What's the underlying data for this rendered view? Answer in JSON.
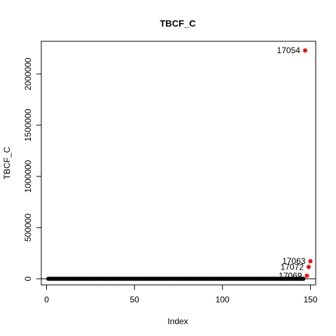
{
  "chart_data": {
    "type": "scatter",
    "title": "TBCF_C",
    "xlabel": "Index",
    "ylabel": "TBCF_C",
    "xlim": [
      -3,
      153
    ],
    "ylim": [
      -60000,
      2320000
    ],
    "x_ticks": [
      0,
      50,
      100,
      150
    ],
    "y_ticks": [
      0,
      500000,
      1000000,
      1500000,
      2000000
    ],
    "grid": false,
    "reference_line_y": 0,
    "base_series": {
      "color": "#000000",
      "x_start": 1,
      "x_end": 146,
      "y": 0
    },
    "outliers": [
      {
        "label": "17054",
        "x": 147,
        "y": 2230000
      },
      {
        "label": "17063",
        "x": 150,
        "y": 172000
      },
      {
        "label": "17072",
        "x": 149,
        "y": 115000
      },
      {
        "label": "17069",
        "x": 148,
        "y": 30000
      }
    ],
    "outlier_color": "#ff0000"
  }
}
